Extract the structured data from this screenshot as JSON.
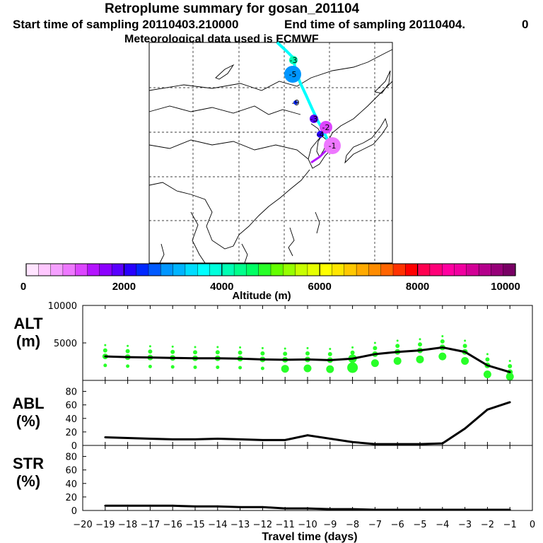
{
  "header": {
    "title": "Retroplume summary for gosan_201104",
    "start": "Start time of sampling 20110403.210000",
    "end": "End time of sampling 20110404.",
    "end_suffix": "0",
    "met": "Meteorological data used is ECMWF"
  },
  "colorbar": {
    "ticks": [
      "0",
      "2000",
      "4000",
      "6000",
      "8000",
      "10000"
    ],
    "label": "Altitude (m)",
    "colors": [
      "#ffe4ff",
      "#ffc8ff",
      "#f5a0ff",
      "#ee78ff",
      "#dc46ff",
      "#b414ff",
      "#8c00ff",
      "#5a00ff",
      "#2800ff",
      "#0028ff",
      "#005aff",
      "#0096ff",
      "#00b4ff",
      "#00dcff",
      "#00ffff",
      "#00ffdc",
      "#00ffb4",
      "#00ff8c",
      "#00ff64",
      "#28ff28",
      "#64ff00",
      "#96ff00",
      "#c8ff00",
      "#e6ff00",
      "#ffff00",
      "#ffe600",
      "#ffc800",
      "#ffaa00",
      "#ff8c00",
      "#ff6400",
      "#ff3200",
      "#ff0000",
      "#ff0050",
      "#ff0078",
      "#ff00a0",
      "#f000a0",
      "#d20096",
      "#b4008c",
      "#960078",
      "#780064"
    ]
  },
  "map": {
    "points": [
      {
        "label": "-1",
        "color": "#ee78ff"
      },
      {
        "label": "-2",
        "color": "#dc46ff"
      },
      {
        "label": "-3",
        "color": "#5a00ff"
      },
      {
        "label": "-4",
        "color": "#2800ff"
      },
      {
        "label": "-5",
        "color": "#0096ff"
      },
      {
        "label": "-9",
        "color": "#0028ff"
      },
      {
        "label": "-3",
        "color": "#00ffb4"
      }
    ],
    "track_color": "#00ffff"
  },
  "chart_data": [
    {
      "type": "line",
      "panel": "ALT",
      "ylabel": "ALT\n(m)",
      "ylabel_lines": [
        "ALT",
        "(m)"
      ],
      "ylim": [
        0,
        10000
      ],
      "yticks": [
        "5000",
        "10000"
      ],
      "x": [
        -19,
        -18,
        -17,
        -16,
        -15,
        -14,
        -13,
        -12,
        -11,
        -10,
        -9,
        -8,
        -7,
        -6,
        -5,
        -4,
        -3,
        -2,
        -1
      ],
      "values": [
        3200,
        3100,
        3050,
        3000,
        2950,
        2950,
        2900,
        2800,
        2750,
        2800,
        2700,
        2900,
        3500,
        3800,
        4000,
        4400,
        3800,
        2000,
        1100
      ],
      "scatter_color": "#28ff28"
    },
    {
      "type": "line",
      "panel": "ABL",
      "ylabel_lines": [
        "ABL",
        "(%)"
      ],
      "ylim": [
        0,
        90
      ],
      "yticks": [
        "0",
        "20",
        "40",
        "60",
        "80"
      ],
      "x": [
        -19,
        -18,
        -17,
        -16,
        -15,
        -14,
        -13,
        -12,
        -11,
        -10,
        -9,
        -8,
        -7,
        -6,
        -5,
        -4,
        -3,
        -2,
        -1
      ],
      "values": [
        12,
        11,
        10,
        9,
        9,
        10,
        9,
        8,
        8,
        15,
        10,
        5,
        2,
        2,
        2,
        3,
        25,
        53,
        64
      ]
    },
    {
      "type": "line",
      "panel": "STR",
      "ylabel_lines": [
        "STR",
        "(%)"
      ],
      "ylim": [
        0,
        90
      ],
      "yticks": [
        "0",
        "20",
        "40",
        "60",
        "80"
      ],
      "x": [
        -19,
        -18,
        -17,
        -16,
        -15,
        -14,
        -13,
        -12,
        -11,
        -10,
        -9,
        -8,
        -7,
        -6,
        -5,
        -4,
        -3,
        -2,
        -1
      ],
      "values": [
        7,
        7,
        7,
        7,
        6,
        6,
        5,
        5,
        3,
        3,
        2,
        2,
        1,
        1,
        1,
        1,
        1,
        1,
        1
      ]
    }
  ],
  "xaxis": {
    "ticks": [
      "−20",
      "−19",
      "−18",
      "−17",
      "−16",
      "−15",
      "−14",
      "−13",
      "−12",
      "−11",
      "−10",
      "−9",
      "−8",
      "−7",
      "−6",
      "−5",
      "−4",
      "−3",
      "−2",
      "−1",
      "0"
    ],
    "label": "Travel time (days)"
  }
}
